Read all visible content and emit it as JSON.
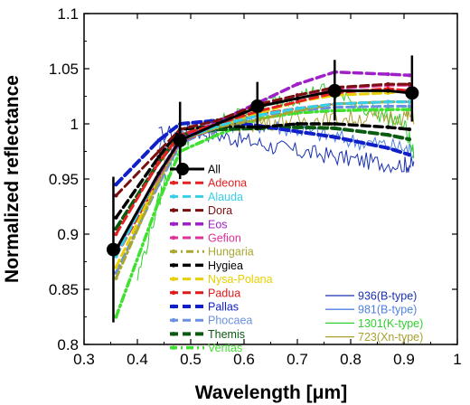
{
  "chart_data": {
    "type": "line",
    "title": "",
    "xlabel": "Wavelength [μm]",
    "ylabel": "Normalized reflectance",
    "xlim": [
      0.3,
      1.0
    ],
    "ylim": [
      0.8,
      1.1
    ],
    "xticks": [
      "0.3",
      "0.4",
      "0.5",
      "0.6",
      "0.7",
      "0.8",
      "0.9",
      "1"
    ],
    "yticks": [
      "0.8",
      "0.85",
      "0.9",
      "0.95",
      "1",
      "1.05",
      "1.1"
    ],
    "x": [
      0.36,
      0.44,
      0.48,
      0.55,
      0.63,
      0.7,
      0.77,
      0.87,
      0.91
    ],
    "legend_left": "center-left",
    "legend_right": "bottom-right",
    "grid": false,
    "series": [
      {
        "name": "All",
        "color": "#000000",
        "style": "solid",
        "width": 3,
        "values": [
          0.886,
          0.955,
          0.985,
          1.0,
          1.016,
          1.023,
          1.03,
          1.03,
          1.028
        ],
        "markers_x": [
          0.355,
          0.48,
          0.625,
          0.77,
          0.915
        ],
        "markers_y": [
          0.886,
          0.985,
          1.016,
          1.03,
          1.028
        ],
        "err_low": [
          0.82,
          0.95,
          0.994,
          1.003,
          1.002
        ],
        "err_high": [
          0.952,
          1.02,
          1.038,
          1.058,
          1.062
        ]
      },
      {
        "name": "Adeona",
        "color": "#e52020",
        "style": "dash",
        "width": 3,
        "values": [
          0.9,
          0.965,
          0.99,
          1.0,
          1.012,
          1.02,
          1.028,
          1.032,
          1.03
        ]
      },
      {
        "name": "Alauda",
        "color": "#35d0e8",
        "style": "dash",
        "width": 3,
        "values": [
          0.88,
          0.955,
          0.985,
          0.998,
          1.008,
          1.014,
          1.018,
          1.02,
          1.02
        ]
      },
      {
        "name": "Dora",
        "color": "#7a0f0f",
        "style": "dash",
        "width": 3,
        "values": [
          0.935,
          0.975,
          0.995,
          1.003,
          1.018,
          1.026,
          1.033,
          1.036,
          1.036
        ]
      },
      {
        "name": "Eos",
        "color": "#a020c8",
        "style": "dash",
        "width": 3.5,
        "values": [
          0.885,
          0.955,
          0.986,
          1.002,
          1.02,
          1.036,
          1.047,
          1.045,
          1.044
        ]
      },
      {
        "name": "Gefion",
        "color": "#e0309a",
        "style": "dash",
        "width": 3,
        "values": [
          0.885,
          0.953,
          0.984,
          1.0,
          1.016,
          1.026,
          1.032,
          1.035,
          1.035
        ]
      },
      {
        "name": "Hungaria",
        "color": "#a8a830",
        "style": "dashdot",
        "width": 3,
        "values": [
          0.86,
          0.948,
          0.985,
          0.997,
          1.004,
          1.012,
          1.018,
          1.02,
          1.02
        ]
      },
      {
        "name": "Hygiea",
        "color": "#000000",
        "style": "dash",
        "width": 3.5,
        "values": [
          0.915,
          0.97,
          0.995,
          0.998,
          0.997,
          1.0,
          1.0,
          0.997,
          0.995
        ]
      },
      {
        "name": "Nysa-Polana",
        "color": "#e8d000",
        "style": "dash",
        "width": 3,
        "values": [
          0.87,
          0.95,
          0.985,
          0.997,
          1.01,
          1.02,
          1.026,
          1.028,
          1.03
        ]
      },
      {
        "name": "Padua",
        "color": "#e01818",
        "style": "dash",
        "width": 3,
        "values": [
          0.88,
          0.95,
          0.984,
          0.997,
          1.009,
          1.014,
          1.018,
          1.02,
          1.02
        ]
      },
      {
        "name": "Pallas",
        "color": "#1020c8",
        "style": "dash",
        "width": 4,
        "values": [
          0.945,
          0.985,
          1.0,
          1.003,
          0.998,
          0.993,
          0.988,
          0.978,
          0.972
        ]
      },
      {
        "name": "Phocaea",
        "color": "#6a90e0",
        "style": "dash",
        "width": 3,
        "values": [
          0.865,
          0.945,
          0.982,
          0.997,
          1.008,
          1.012,
          1.015,
          1.016,
          1.016
        ]
      },
      {
        "name": "Themis",
        "color": "#0a5a10",
        "style": "dash",
        "width": 4,
        "values": [
          0.905,
          0.965,
          0.99,
          0.995,
          0.996,
          0.997,
          0.996,
          0.99,
          0.986
        ]
      },
      {
        "name": "Veritas",
        "color": "#40e030",
        "style": "dashdot",
        "width": 3.5,
        "values": [
          0.825,
          0.93,
          0.975,
          0.99,
          1.005,
          1.01,
          1.012,
          1.013,
          1.013
        ]
      }
    ],
    "spectra": [
      {
        "name": "936(B-type)",
        "color": "#1a2fb0",
        "x": [
          0.44,
          0.5,
          0.55,
          0.6,
          0.65,
          0.7,
          0.75,
          0.8,
          0.85,
          0.9,
          0.92
        ],
        "y": [
          0.99,
          0.995,
          0.99,
          0.985,
          0.98,
          0.975,
          0.972,
          0.968,
          0.965,
          0.963,
          0.963
        ]
      },
      {
        "name": "981(B-type)",
        "color": "#5080e0",
        "x": [
          0.44,
          0.5,
          0.55,
          0.6,
          0.65,
          0.7,
          0.75,
          0.8,
          0.85,
          0.9,
          0.92
        ],
        "y": [
          0.98,
          0.995,
          1.0,
          1.0,
          0.998,
          0.995,
          0.99,
          0.985,
          0.982,
          0.978,
          0.975
        ]
      },
      {
        "name": "1301(K-type)",
        "color": "#30d030",
        "x": [
          0.4,
          0.44,
          0.47,
          0.5,
          0.55,
          0.6,
          0.65,
          0.7,
          0.75,
          0.8,
          0.85,
          0.9,
          0.92
        ],
        "y": [
          0.86,
          0.93,
          0.975,
          0.99,
          1.0,
          1.01,
          1.02,
          1.025,
          1.03,
          1.02,
          1.01,
          1.0,
          0.97
        ]
      },
      {
        "name": "723(Xn-type)",
        "color": "#a8a030",
        "x": [
          0.44,
          0.5,
          0.55,
          0.6,
          0.65,
          0.7,
          0.75,
          0.8,
          0.85,
          0.9,
          0.92
        ],
        "y": [
          0.97,
          0.995,
          1.0,
          1.0,
          1.002,
          1.003,
          1.004,
          1.005,
          1.006,
          1.007,
          1.007
        ]
      }
    ]
  }
}
